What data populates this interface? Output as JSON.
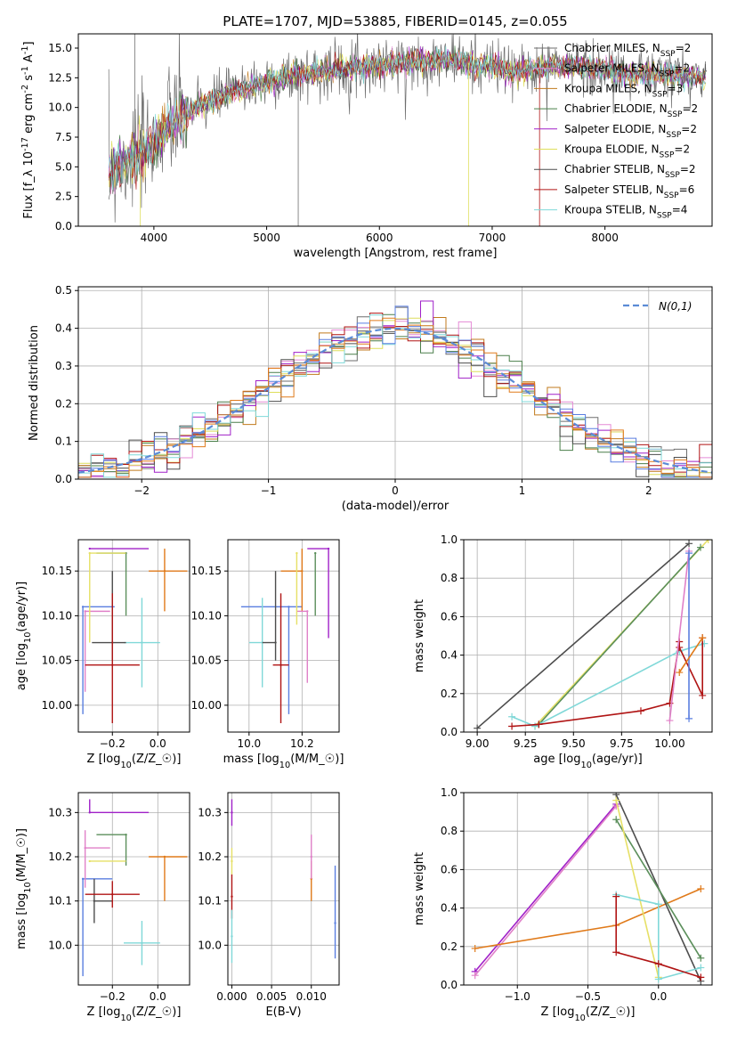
{
  "title": "PLATE=1707, MJD=53885, FIBERID=0145, z=0.055",
  "colors": {
    "chabrier_miles": "#6e6e6e",
    "salpeter_miles": "#e58ad6",
    "kroupa_miles": "#c17a1c",
    "chabrier_elodie": "#4a7f4a",
    "salpeter_elodie": "#a020c8",
    "kroupa_elodie": "#dede5a",
    "chabrier_stelib": "#4d4d4d",
    "salpeter_stelib": "#b01414",
    "kroupa_stelib": "#7fd9d9",
    "gaussian": "#5b8bd6",
    "blue": "#5a7ee0",
    "orange": "#e07a1a",
    "green": "#5b8f5b",
    "pink": "#e080c8",
    "cyan": "#80d8d8",
    "yellow": "#e6e066"
  },
  "chart_data": [
    {
      "id": "spectrum",
      "type": "line",
      "title": "PLATE=1707, MJD=53885, FIBERID=0145, z=0.055",
      "xlabel": "wavelength [Angstrom, rest frame]",
      "ylabel": "Flux [f$_\\lambda$ 10$^{-17}$ erg cm$^{-2}$ s$^{-1}$ A$^{-1}$]",
      "xlim": [
        3330,
        8950
      ],
      "ylim": [
        0,
        16.2
      ],
      "xticks": [
        4000,
        5000,
        6000,
        7000,
        8000
      ],
      "yticks": [
        0.0,
        2.5,
        5.0,
        7.5,
        10.0,
        12.5,
        15.0
      ],
      "grid": false,
      "legend_position": "top-right",
      "continuum": {
        "x": [
          3600,
          3700,
          3800,
          3900,
          4000,
          4100,
          4200,
          4300,
          4500,
          4700,
          5000,
          5300,
          5600,
          6000,
          6300,
          6600,
          6900,
          7200,
          7400,
          7600,
          7800,
          8000,
          8400,
          8900
        ],
        "y": [
          4.5,
          5.2,
          5.8,
          6.2,
          7.0,
          8.2,
          9.0,
          9.5,
          10.5,
          11.3,
          12.2,
          12.8,
          13.2,
          13.6,
          13.8,
          14.0,
          13.6,
          13.0,
          13.3,
          13.5,
          13.4,
          13.1,
          12.8,
          12.5
        ]
      },
      "series": [
        {
          "name": "Chabrier MILES, N$_{SSP}$=2",
          "color_key": "chabrier_miles"
        },
        {
          "name": "Salpeter MILES, N$_{SSP}$=2",
          "color_key": "salpeter_miles"
        },
        {
          "name": "Kroupa MILES, N$_{SSP}$=3",
          "color_key": "kroupa_miles"
        },
        {
          "name": "Chabrier ELODIE, N$_{SSP}$=2",
          "color_key": "chabrier_elodie"
        },
        {
          "name": "Salpeter ELODIE, N$_{SSP}$=2",
          "color_key": "salpeter_elodie"
        },
        {
          "name": "Kroupa ELODIE, N$_{SSP}$=2",
          "color_key": "kroupa_elodie"
        },
        {
          "name": "Chabrier STELIB, N$_{SSP}$=2",
          "color_key": "chabrier_stelib"
        },
        {
          "name": "Salpeter STELIB, N$_{SSP}$=6",
          "color_key": "salpeter_stelib"
        },
        {
          "name": "Kroupa STELIB, N$_{SSP}$=4",
          "color_key": "kroupa_stelib"
        }
      ]
    },
    {
      "id": "residuals",
      "type": "line",
      "xlabel": "(data-model)/error",
      "ylabel": "Normed distribution",
      "xlim": [
        -2.5,
        2.5
      ],
      "ylim": [
        0,
        0.51
      ],
      "xticks": [
        -2,
        -1,
        0,
        1,
        2
      ],
      "yticks": [
        0.0,
        0.1,
        0.2,
        0.3,
        0.4,
        0.5
      ],
      "grid": true,
      "legend_position": "top-right",
      "legend": [
        "$\\mathcal{N}(0,1)$"
      ],
      "bin_width": 0.1
    },
    {
      "id": "age_vs_z",
      "type": "scatter",
      "xlabel": "Z [log$_{10}$(Z/Z$_\\odot$)]",
      "ylabel": "age  [log$_{10}$(age/yr)]",
      "xlim": [
        -0.35,
        0.14
      ],
      "ylim": [
        9.97,
        10.185
      ],
      "xticks": [
        -0.2,
        0.0
      ],
      "yticks": [
        10.0,
        10.05,
        10.1,
        10.15
      ],
      "grid": true,
      "points": [
        {
          "x": -0.33,
          "y": 10.11,
          "xerr": [
            0.0,
            0.14
          ],
          "yerr": [
            0.12,
            0.0
          ],
          "color_key": "blue"
        },
        {
          "x": 0.03,
          "y": 10.15,
          "xerr": [
            0.07,
            0.1
          ],
          "yerr": [
            0.045,
            0.025
          ],
          "color_key": "orange"
        },
        {
          "x": -0.14,
          "y": 10.17,
          "xerr": [
            0.13,
            0.0
          ],
          "yerr": [
            0.07,
            0.0
          ],
          "color_key": "green"
        },
        {
          "x": -0.32,
          "y": 10.105,
          "xerr": [
            0.0,
            0.11
          ],
          "yerr": [
            0.09,
            0.0
          ],
          "color_key": "pink"
        },
        {
          "x": -0.07,
          "y": 10.07,
          "xerr": [
            0.08,
            0.08
          ],
          "yerr": [
            0.05,
            0.05
          ],
          "color_key": "cyan"
        },
        {
          "x": -0.3,
          "y": 10.175,
          "xerr": [
            0.0,
            0.26
          ],
          "yerr": [
            0.0,
            0.0
          ],
          "color_key": "salpeter_elodie"
        },
        {
          "x": -0.3,
          "y": 10.17,
          "xerr": [
            0.0,
            0.16
          ],
          "yerr": [
            0.1,
            0.0
          ],
          "color_key": "yellow"
        },
        {
          "x": -0.2,
          "y": 10.07,
          "xerr": [
            0.09,
            0.06
          ],
          "yerr": [
            0.02,
            0.08
          ],
          "color_key": "chabrier_stelib"
        },
        {
          "x": -0.2,
          "y": 10.045,
          "xerr": [
            0.12,
            0.12
          ],
          "yerr": [
            0.065,
            0.08
          ],
          "color_key": "salpeter_stelib"
        }
      ]
    },
    {
      "id": "age_vs_mass",
      "type": "scatter",
      "xlabel": "mass [log$_{10}$(M/M$_\\odot$)]",
      "ylabel": "",
      "xlim": [
        9.92,
        10.34
      ],
      "ylim": [
        9.97,
        10.185
      ],
      "xticks": [
        10.0,
        10.2
      ],
      "yticks": [
        10.0,
        10.05,
        10.1,
        10.15
      ],
      "grid": true,
      "points": [
        {
          "x": 10.15,
          "y": 10.11,
          "xerr": [
            0.18,
            0.05
          ],
          "yerr": [
            0.12,
            0.0
          ],
          "color_key": "blue"
        },
        {
          "x": 10.2,
          "y": 10.15,
          "xerr": [
            0.08,
            0.0
          ],
          "yerr": [
            0.045,
            0.025
          ],
          "color_key": "orange"
        },
        {
          "x": 10.25,
          "y": 10.17,
          "xerr": [
            0.0,
            0.0
          ],
          "yerr": [
            0.07,
            0.0
          ],
          "color_key": "green"
        },
        {
          "x": 10.22,
          "y": 10.105,
          "xerr": [
            0.04,
            0.0
          ],
          "yerr": [
            0.08,
            0.0
          ],
          "color_key": "pink"
        },
        {
          "x": 10.05,
          "y": 10.07,
          "xerr": [
            0.05,
            0.0
          ],
          "yerr": [
            0.05,
            0.05
          ],
          "color_key": "cyan"
        },
        {
          "x": 10.3,
          "y": 10.175,
          "xerr": [
            0.08,
            0.0
          ],
          "yerr": [
            0.1,
            0.0
          ],
          "color_key": "salpeter_elodie"
        },
        {
          "x": 10.18,
          "y": 10.17,
          "xerr": [
            0.0,
            0.0
          ],
          "yerr": [
            0.08,
            0.0
          ],
          "color_key": "yellow"
        },
        {
          "x": 10.1,
          "y": 10.07,
          "xerr": [
            0.05,
            0.0
          ],
          "yerr": [
            0.02,
            0.08
          ],
          "color_key": "chabrier_stelib"
        },
        {
          "x": 10.12,
          "y": 10.045,
          "xerr": [
            0.03,
            0.03
          ],
          "yerr": [
            0.065,
            0.08
          ],
          "color_key": "salpeter_stelib"
        }
      ]
    },
    {
      "id": "weight_vs_age",
      "type": "line",
      "xlabel": "age  [log$_{10}$(age/yr)]",
      "ylabel": "mass weight",
      "xlim": [
        8.93,
        10.22
      ],
      "ylim": [
        0,
        1.0
      ],
      "xticks": [
        9.0,
        9.25,
        9.5,
        9.75,
        10.0
      ],
      "xticklabels": [
        "9.00",
        "9.25",
        "9.50",
        "9.75",
        "10.00"
      ],
      "yticks": [
        0.0,
        0.2,
        0.4,
        0.6,
        0.8,
        1.0
      ],
      "grid": true,
      "series": [
        {
          "color_key": "chabrier_stelib",
          "x": [
            9.0,
            10.1
          ],
          "y": [
            0.02,
            0.98
          ]
        },
        {
          "color_key": "yellow",
          "x": [
            9.3,
            10.2
          ],
          "y": [
            0.03,
            1.0
          ]
        },
        {
          "color_key": "green",
          "x": [
            9.32,
            10.16
          ],
          "y": [
            0.04,
            0.96
          ]
        },
        {
          "color_key": "cyan",
          "x": [
            9.18,
            9.3,
            10.05,
            10.18
          ],
          "y": [
            0.08,
            0.03,
            0.42,
            0.46
          ]
        },
        {
          "color_key": "salpeter_stelib",
          "x": [
            9.18,
            9.32,
            9.85,
            10.0,
            10.05,
            10.05,
            10.17,
            10.17
          ],
          "y": [
            0.03,
            0.04,
            0.11,
            0.15,
            0.47,
            0.44,
            0.19,
            0.49
          ]
        },
        {
          "color_key": "pink",
          "x": [
            10.0,
            10.1
          ],
          "y": [
            0.06,
            0.94
          ]
        },
        {
          "color_key": "blue",
          "x": [
            10.1,
            10.1
          ],
          "y": [
            0.07,
            0.93
          ]
        },
        {
          "color_key": "orange",
          "x": [
            10.05,
            10.17
          ],
          "y": [
            0.31,
            0.49
          ]
        }
      ]
    },
    {
      "id": "mass_vs_z",
      "type": "scatter",
      "xlabel": "Z [log$_{10}$(Z/Z$_\\odot$)]",
      "ylabel": "mass [log$_{10}$(M/M$_\\odot$)]",
      "xlim": [
        -0.35,
        0.14
      ],
      "ylim": [
        9.91,
        10.345
      ],
      "xticks": [
        -0.2,
        0.0
      ],
      "yticks": [
        10.0,
        10.1,
        10.2,
        10.3
      ],
      "grid": true,
      "points": [
        {
          "x": -0.33,
          "y": 10.15,
          "xerr": [
            0.0,
            0.13
          ],
          "yerr": [
            0.22,
            0.0
          ],
          "color_key": "blue"
        },
        {
          "x": 0.03,
          "y": 10.2,
          "xerr": [
            0.07,
            0.1
          ],
          "yerr": [
            0.1,
            0.0
          ],
          "color_key": "orange"
        },
        {
          "x": -0.14,
          "y": 10.25,
          "xerr": [
            0.13,
            0.0
          ],
          "yerr": [
            0.07,
            0.0
          ],
          "color_key": "green"
        },
        {
          "x": -0.32,
          "y": 10.22,
          "xerr": [
            0.0,
            0.11
          ],
          "yerr": [
            0.09,
            0.04
          ],
          "color_key": "pink"
        },
        {
          "x": -0.07,
          "y": 10.005,
          "xerr": [
            0.08,
            0.08
          ],
          "yerr": [
            0.05,
            0.05
          ],
          "color_key": "cyan"
        },
        {
          "x": -0.3,
          "y": 10.3,
          "xerr": [
            0.0,
            0.26
          ],
          "yerr": [
            0.0,
            0.03
          ],
          "color_key": "salpeter_elodie"
        },
        {
          "x": -0.3,
          "y": 10.19,
          "xerr": [
            0.0,
            0.16
          ],
          "yerr": [
            0.0,
            0.0
          ],
          "color_key": "yellow"
        },
        {
          "x": -0.28,
          "y": 10.1,
          "xerr": [
            0.0,
            0.08
          ],
          "yerr": [
            0.05,
            0.05
          ],
          "color_key": "chabrier_stelib"
        },
        {
          "x": -0.2,
          "y": 10.115,
          "xerr": [
            0.12,
            0.12
          ],
          "yerr": [
            0.03,
            0.03
          ],
          "color_key": "salpeter_stelib"
        }
      ]
    },
    {
      "id": "mass_vs_ebv",
      "type": "scatter",
      "xlabel": "E(B-V)",
      "ylabel": "",
      "xlim": [
        -0.0005,
        0.0135
      ],
      "ylim": [
        9.91,
        10.345
      ],
      "xticks": [
        0.0,
        0.005,
        0.01
      ],
      "xticklabels": [
        "0.000",
        "0.005",
        "0.010"
      ],
      "yticks": [
        10.0,
        10.1,
        10.2,
        10.3
      ],
      "grid": true,
      "points": [
        {
          "x": 0.013,
          "y": 10.05,
          "yerr": [
            0.08,
            0.13
          ],
          "color_key": "blue"
        },
        {
          "x": 0.01,
          "y": 10.15,
          "yerr": [
            0.05,
            0.04
          ],
          "color_key": "orange"
        },
        {
          "x": 0.0,
          "y": 10.3,
          "yerr": [
            0.03,
            0.03
          ],
          "color_key": "salpeter_elodie"
        },
        {
          "x": 0.0,
          "y": 10.19,
          "yerr": [
            0.03,
            0.03
          ],
          "color_key": "yellow"
        },
        {
          "x": 0.0,
          "y": 10.11,
          "yerr": [
            0.05,
            0.05
          ],
          "color_key": "salpeter_stelib"
        },
        {
          "x": 0.0,
          "y": 10.02,
          "yerr": [
            0.06,
            0.06
          ],
          "color_key": "cyan"
        },
        {
          "x": 0.01,
          "y": 10.2,
          "yerr": [
            0.05,
            0.05
          ],
          "color_key": "pink"
        }
      ]
    },
    {
      "id": "weight_vs_z",
      "type": "line",
      "xlabel": "Z [log$_{10}$(Z/Z$_\\odot$)]",
      "ylabel": "mass weight",
      "xlim": [
        -1.38,
        0.38
      ],
      "ylim": [
        0,
        1.0
      ],
      "xticks": [
        -1.0,
        -0.5,
        0.0
      ],
      "yticks": [
        0.0,
        0.2,
        0.4,
        0.6,
        0.8,
        1.0
      ],
      "grid": true,
      "series": [
        {
          "color_key": "salpeter_elodie",
          "x": [
            -1.3,
            -0.3
          ],
          "y": [
            0.07,
            0.94
          ]
        },
        {
          "color_key": "pink",
          "x": [
            -1.3,
            -0.3
          ],
          "y": [
            0.05,
            0.93
          ]
        },
        {
          "color_key": "orange",
          "x": [
            -1.3,
            -0.3,
            0.3
          ],
          "y": [
            0.19,
            0.31,
            0.5
          ]
        },
        {
          "color_key": "chabrier_stelib",
          "x": [
            -0.3,
            0.3
          ],
          "y": [
            0.99,
            0.02
          ]
        },
        {
          "color_key": "green",
          "x": [
            -0.3,
            0.3
          ],
          "y": [
            0.86,
            0.14
          ]
        },
        {
          "color_key": "yellow",
          "x": [
            -0.3,
            0.0
          ],
          "y": [
            0.96,
            0.04
          ]
        },
        {
          "color_key": "cyan",
          "x": [
            -0.3,
            0.0,
            0.0,
            0.3
          ],
          "y": [
            0.47,
            0.42,
            0.03,
            0.09
          ]
        },
        {
          "color_key": "salpeter_stelib",
          "x": [
            -0.3,
            -0.3,
            0.0,
            0.3
          ],
          "y": [
            0.46,
            0.17,
            0.11,
            0.04
          ]
        }
      ]
    }
  ]
}
